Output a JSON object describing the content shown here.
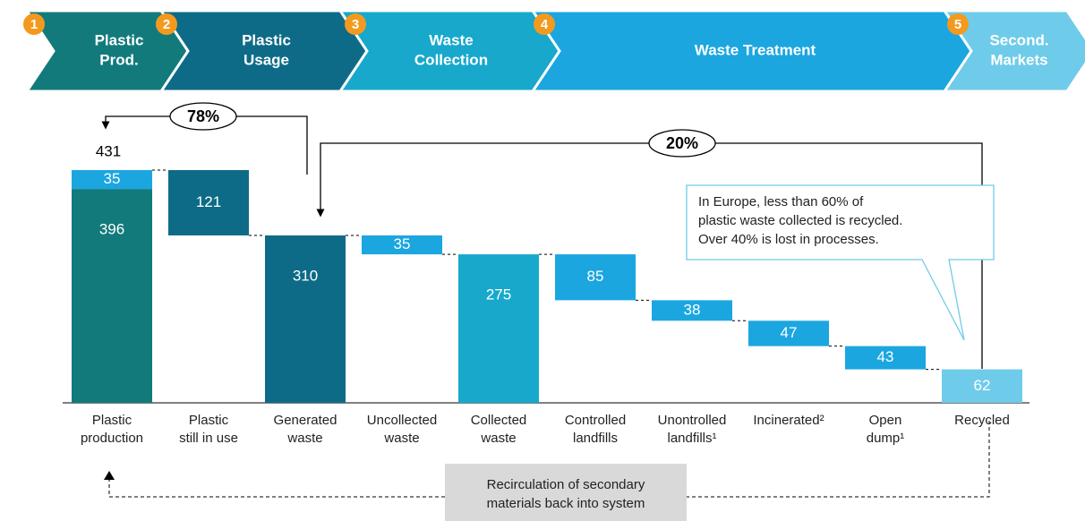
{
  "stages": [
    {
      "number": 1,
      "lines": [
        "Plastic",
        "Prod."
      ],
      "color": "#137a7c"
    },
    {
      "number": 2,
      "lines": [
        "Plastic",
        "Usage"
      ],
      "color": "#0e6b87"
    },
    {
      "number": 3,
      "lines": [
        "Waste",
        "Collection"
      ],
      "color": "#17a8cc"
    },
    {
      "number": 4,
      "lines": [
        "Waste Treatment"
      ],
      "color": "#1ba6e0"
    },
    {
      "number": 5,
      "lines": [
        "Second.",
        "Markets"
      ],
      "color": "#6fcbea"
    }
  ],
  "chart_data": {
    "type": "waterfall",
    "bars": [
      {
        "category": [
          "Plastic",
          "production"
        ],
        "kind": "total",
        "total": 431,
        "segments": [
          {
            "value": 396,
            "color": "#137a7c"
          },
          {
            "value": 35,
            "color": "#1ba6e0"
          }
        ]
      },
      {
        "category": [
          "Plastic",
          "still in use"
        ],
        "kind": "decrease",
        "value": 121,
        "color": "#0e6b87"
      },
      {
        "category": [
          "Generated",
          "waste"
        ],
        "kind": "total",
        "value": 310,
        "color": "#0e6b87"
      },
      {
        "category": [
          "Uncollected",
          "waste"
        ],
        "kind": "decrease",
        "value": 35,
        "color": "#1ba6e0"
      },
      {
        "category": [
          "Collected",
          "waste"
        ],
        "kind": "total",
        "value": 275,
        "color": "#17a8cc"
      },
      {
        "category": [
          "Controlled",
          "landfills"
        ],
        "kind": "decrease",
        "value": 85,
        "color": "#1ba6e0"
      },
      {
        "category": [
          "Unontrolled",
          "landfills¹"
        ],
        "kind": "decrease",
        "value": 38,
        "color": "#1ba6e0"
      },
      {
        "category": [
          "Incinerated²"
        ],
        "kind": "decrease",
        "value": 47,
        "color": "#1ba6e0"
      },
      {
        "category": [
          "Open",
          "dump¹"
        ],
        "kind": "decrease",
        "value": 43,
        "color": "#1ba6e0"
      },
      {
        "category": [
          "Recycled"
        ],
        "kind": "total",
        "value": 62,
        "color": "#6fcbea"
      }
    ],
    "annotations": {
      "loop1": "78%",
      "loop2": "20%",
      "callout": [
        "In Europe, less than 60% of",
        "plastic waste collected is recycled.",
        "Over 40% is lost in processes."
      ],
      "footer": [
        "Recirculation of secondary",
        "materials back into system"
      ]
    }
  }
}
